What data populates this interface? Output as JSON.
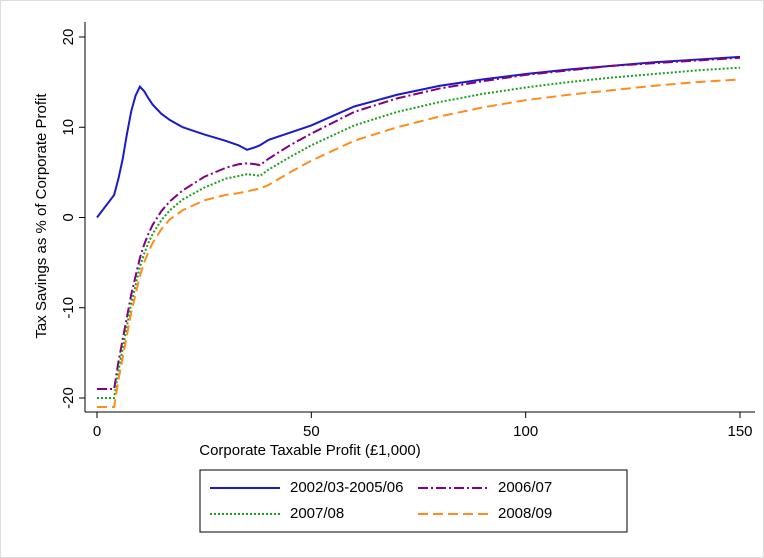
{
  "chart_data": {
    "type": "line",
    "xlabel": "Corporate Taxable Profit (£1,000)",
    "ylabel": "Tax Savings as % of Corporate Profit",
    "x": [
      0,
      4,
      5,
      6,
      7,
      8,
      9,
      10,
      11,
      12,
      13,
      15,
      17,
      20,
      25,
      30,
      33,
      35,
      37,
      38,
      40,
      45,
      50,
      60,
      70,
      80,
      90,
      100,
      110,
      120,
      130,
      140,
      150
    ],
    "series": [
      {
        "name": "2002/03-2005/06",
        "color": "#1a1acc",
        "dash": "solid",
        "values": [
          0,
          2.5,
          4.3,
          6.5,
          9.3,
          11.8,
          13.5,
          14.5,
          14,
          13.2,
          12.5,
          11.5,
          10.8,
          10,
          9.2,
          8.5,
          8,
          7.5,
          7.8,
          8,
          8.6,
          9.4,
          10.2,
          12.3,
          13.6,
          14.6,
          15.3,
          15.9,
          16.4,
          16.8,
          17.2,
          17.5,
          17.8
        ]
      },
      {
        "name": "2006/07",
        "color": "#800080",
        "dash": "dashdot",
        "values": [
          -19,
          -19,
          -16,
          -13.5,
          -11,
          -8.5,
          -6.5,
          -4.5,
          -3,
          -1.8,
          -0.8,
          0.7,
          1.8,
          3,
          4.5,
          5.5,
          5.9,
          6,
          5.9,
          5.8,
          6.5,
          8,
          9.3,
          11.7,
          13.2,
          14.3,
          15.1,
          15.8,
          16.3,
          16.8,
          17.1,
          17.4,
          17.7
        ]
      },
      {
        "name": "2007/08",
        "color": "#1aa01a",
        "dash": "dotted",
        "values": [
          -20,
          -20,
          -17,
          -14.5,
          -12,
          -9.5,
          -7.5,
          -5.5,
          -4,
          -2.8,
          -1.8,
          -0.3,
          0.8,
          2,
          3.3,
          4.3,
          4.6,
          4.8,
          4.7,
          4.6,
          5.3,
          6.7,
          8,
          10.2,
          11.7,
          12.8,
          13.7,
          14.4,
          15,
          15.5,
          15.9,
          16.3,
          16.6
        ]
      },
      {
        "name": "2008/09",
        "color": "#ff8c1a",
        "dash": "dashed",
        "values": [
          -21,
          -21,
          -18,
          -15.5,
          -13,
          -10.5,
          -8.5,
          -6.5,
          -5,
          -3.8,
          -2.8,
          -1.3,
          -0.2,
          0.8,
          1.9,
          2.5,
          2.7,
          2.9,
          3.1,
          3.2,
          3.6,
          5,
          6.3,
          8.5,
          10,
          11.2,
          12.2,
          13,
          13.6,
          14.1,
          14.6,
          15,
          15.3
        ]
      }
    ],
    "xlim": [
      0,
      150
    ],
    "xticks": [
      0,
      50,
      100,
      150
    ],
    "ylim": [
      -20,
      20
    ],
    "yticks": [
      -20,
      -10,
      0,
      10,
      20
    ],
    "legend": "bottom"
  }
}
